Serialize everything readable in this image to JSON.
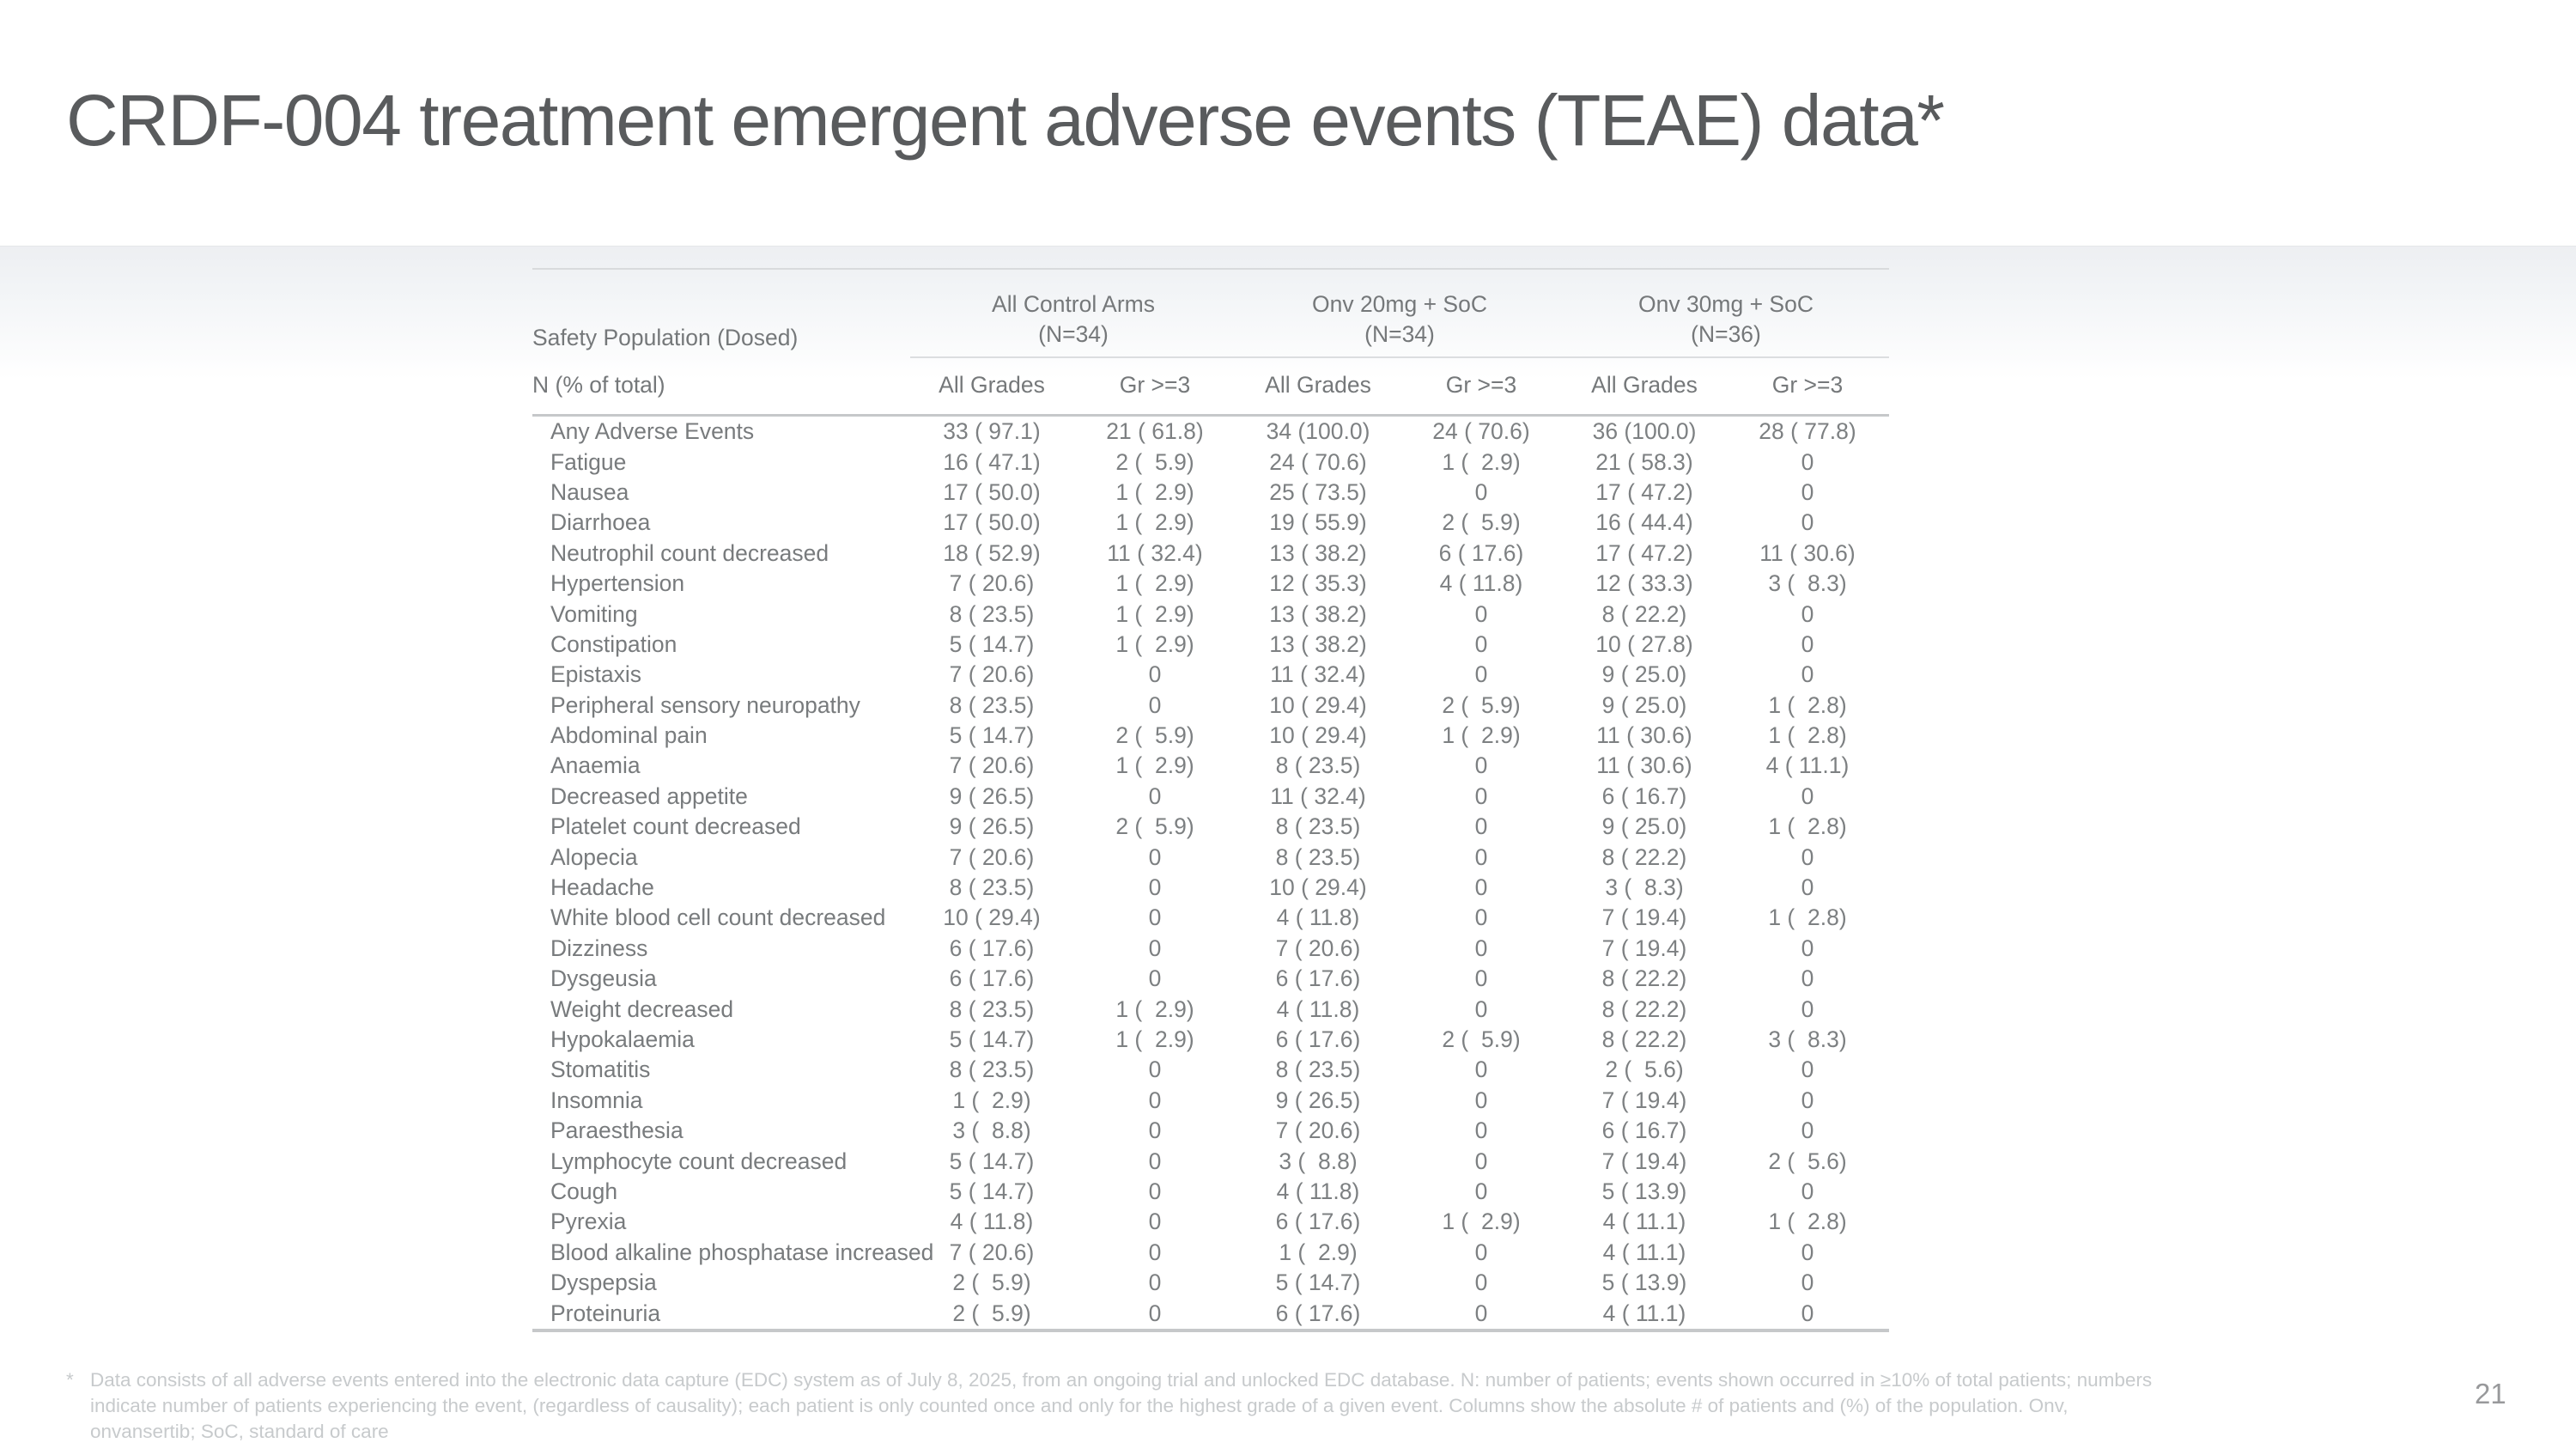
{
  "slide": {
    "title": "CRDF-004 treatment emergent adverse events (TEAE) data*",
    "page_number": "21"
  },
  "table": {
    "row_header_label": "Safety Population (Dosed)",
    "subheader_label": "N (% of total)",
    "groups": [
      {
        "name": "All Control Arms",
        "n": "(N=34)"
      },
      {
        "name": "Onv 20mg + SoC",
        "n": "(N=34)"
      },
      {
        "name": "Onv 30mg + SoC",
        "n": "(N=36)"
      }
    ],
    "columns": [
      "All Grades",
      "Gr >=3",
      "All Grades",
      "Gr >=3",
      "All Grades",
      "Gr >=3"
    ],
    "rows": [
      {
        "label": "Any Adverse Events",
        "values": [
          "33 ( 97.1)",
          "21 ( 61.8)",
          "34 (100.0)",
          "24 ( 70.6)",
          "36 (100.0)",
          "28 ( 77.8)"
        ]
      },
      {
        "label": "Fatigue",
        "values": [
          "16 ( 47.1)",
          "2 (  5.9)",
          "24 ( 70.6)",
          "1 (  2.9)",
          "21 ( 58.3)",
          "0"
        ]
      },
      {
        "label": "Nausea",
        "values": [
          "17 ( 50.0)",
          "1 (  2.9)",
          "25 ( 73.5)",
          "0",
          "17 ( 47.2)",
          "0"
        ]
      },
      {
        "label": "Diarrhoea",
        "values": [
          "17 ( 50.0)",
          "1 (  2.9)",
          "19 ( 55.9)",
          "2 (  5.9)",
          "16 ( 44.4)",
          "0"
        ]
      },
      {
        "label": "Neutrophil count decreased",
        "values": [
          "18 ( 52.9)",
          "11 ( 32.4)",
          "13 ( 38.2)",
          "6 ( 17.6)",
          "17 ( 47.2)",
          "11 ( 30.6)"
        ]
      },
      {
        "label": "Hypertension",
        "values": [
          "7 ( 20.6)",
          "1 (  2.9)",
          "12 ( 35.3)",
          "4 ( 11.8)",
          "12 ( 33.3)",
          "3 (  8.3)"
        ]
      },
      {
        "label": "Vomiting",
        "values": [
          "8 ( 23.5)",
          "1 (  2.9)",
          "13 ( 38.2)",
          "0",
          "8 ( 22.2)",
          "0"
        ]
      },
      {
        "label": "Constipation",
        "values": [
          "5 ( 14.7)",
          "1 (  2.9)",
          "13 ( 38.2)",
          "0",
          "10 ( 27.8)",
          "0"
        ]
      },
      {
        "label": "Epistaxis",
        "values": [
          "7 ( 20.6)",
          "0",
          "11 ( 32.4)",
          "0",
          "9 ( 25.0)",
          "0"
        ]
      },
      {
        "label": "Peripheral sensory neuropathy",
        "values": [
          "8 ( 23.5)",
          "0",
          "10 ( 29.4)",
          "2 (  5.9)",
          "9 ( 25.0)",
          "1 (  2.8)"
        ]
      },
      {
        "label": "Abdominal pain",
        "values": [
          "5 ( 14.7)",
          "2 (  5.9)",
          "10 ( 29.4)",
          "1 (  2.9)",
          "11 ( 30.6)",
          "1 (  2.8)"
        ]
      },
      {
        "label": "Anaemia",
        "values": [
          "7 ( 20.6)",
          "1 (  2.9)",
          "8 ( 23.5)",
          "0",
          "11 ( 30.6)",
          "4 ( 11.1)"
        ]
      },
      {
        "label": "Decreased appetite",
        "values": [
          "9 ( 26.5)",
          "0",
          "11 ( 32.4)",
          "0",
          "6 ( 16.7)",
          "0"
        ]
      },
      {
        "label": "Platelet count decreased",
        "values": [
          "9 ( 26.5)",
          "2 (  5.9)",
          "8 ( 23.5)",
          "0",
          "9 ( 25.0)",
          "1 (  2.8)"
        ]
      },
      {
        "label": "Alopecia",
        "values": [
          "7 ( 20.6)",
          "0",
          "8 ( 23.5)",
          "0",
          "8 ( 22.2)",
          "0"
        ]
      },
      {
        "label": "Headache",
        "values": [
          "8 ( 23.5)",
          "0",
          "10 ( 29.4)",
          "0",
          "3 (  8.3)",
          "0"
        ]
      },
      {
        "label": "White blood cell count decreased",
        "values": [
          "10 ( 29.4)",
          "0",
          "4 ( 11.8)",
          "0",
          "7 ( 19.4)",
          "1 (  2.8)"
        ]
      },
      {
        "label": "Dizziness",
        "values": [
          "6 ( 17.6)",
          "0",
          "7 ( 20.6)",
          "0",
          "7 ( 19.4)",
          "0"
        ]
      },
      {
        "label": "Dysgeusia",
        "values": [
          "6 ( 17.6)",
          "0",
          "6 ( 17.6)",
          "0",
          "8 ( 22.2)",
          "0"
        ]
      },
      {
        "label": "Weight decreased",
        "values": [
          "8 ( 23.5)",
          "1 (  2.9)",
          "4 ( 11.8)",
          "0",
          "8 ( 22.2)",
          "0"
        ]
      },
      {
        "label": "Hypokalaemia",
        "values": [
          "5 ( 14.7)",
          "1 (  2.9)",
          "6 ( 17.6)",
          "2 (  5.9)",
          "8 ( 22.2)",
          "3 (  8.3)"
        ]
      },
      {
        "label": "Stomatitis",
        "values": [
          "8 ( 23.5)",
          "0",
          "8 ( 23.5)",
          "0",
          "2 (  5.6)",
          "0"
        ]
      },
      {
        "label": "Insomnia",
        "values": [
          "1 (  2.9)",
          "0",
          "9 ( 26.5)",
          "0",
          "7 ( 19.4)",
          "0"
        ]
      },
      {
        "label": "Paraesthesia",
        "values": [
          "3 (  8.8)",
          "0",
          "7 ( 20.6)",
          "0",
          "6 ( 16.7)",
          "0"
        ]
      },
      {
        "label": "Lymphocyte count decreased",
        "values": [
          "5 ( 14.7)",
          "0",
          "3 (  8.8)",
          "0",
          "7 ( 19.4)",
          "2 (  5.6)"
        ]
      },
      {
        "label": "Cough",
        "values": [
          "5 ( 14.7)",
          "0",
          "4 ( 11.8)",
          "0",
          "5 ( 13.9)",
          "0"
        ]
      },
      {
        "label": "Pyrexia",
        "values": [
          "4 ( 11.8)",
          "0",
          "6 ( 17.6)",
          "1 (  2.9)",
          "4 ( 11.1)",
          "1 (  2.8)"
        ]
      },
      {
        "label": "Blood alkaline phosphatase increased",
        "values": [
          "7 ( 20.6)",
          "0",
          "1 (  2.9)",
          "0",
          "4 ( 11.1)",
          "0"
        ]
      },
      {
        "label": "Dyspepsia",
        "values": [
          "2 (  5.9)",
          "0",
          "5 ( 14.7)",
          "0",
          "5 ( 13.9)",
          "0"
        ]
      },
      {
        "label": "Proteinuria",
        "values": [
          "2 (  5.9)",
          "0",
          "6 ( 17.6)",
          "0",
          "4 ( 11.1)",
          "0"
        ]
      }
    ]
  },
  "footnote": {
    "marker": "*",
    "lines": [
      "Data consists of all adverse events entered into the electronic data capture (EDC) system as of July 8, 2025, from an ongoing trial and unlocked EDC database. N: number of patients; events shown occurred in ≥10% of total patients; numbers",
      "indicate number of patients experiencing the event, (regardless of causality); each patient is only counted once and only for the highest grade of a given event. Columns show the absolute # of patients and (%) of the population. Onv,",
      "onvansertib; SoC, standard of care"
    ]
  },
  "colors": {
    "title_text": "#595b5d",
    "table_text": "#7d8082",
    "band_gray": "#edeff2",
    "rule_light": "#d9dbdd",
    "rule_dark": "#c6c8ca",
    "footnote_text": "#c7cacc",
    "page_number_text": "#98999b"
  }
}
